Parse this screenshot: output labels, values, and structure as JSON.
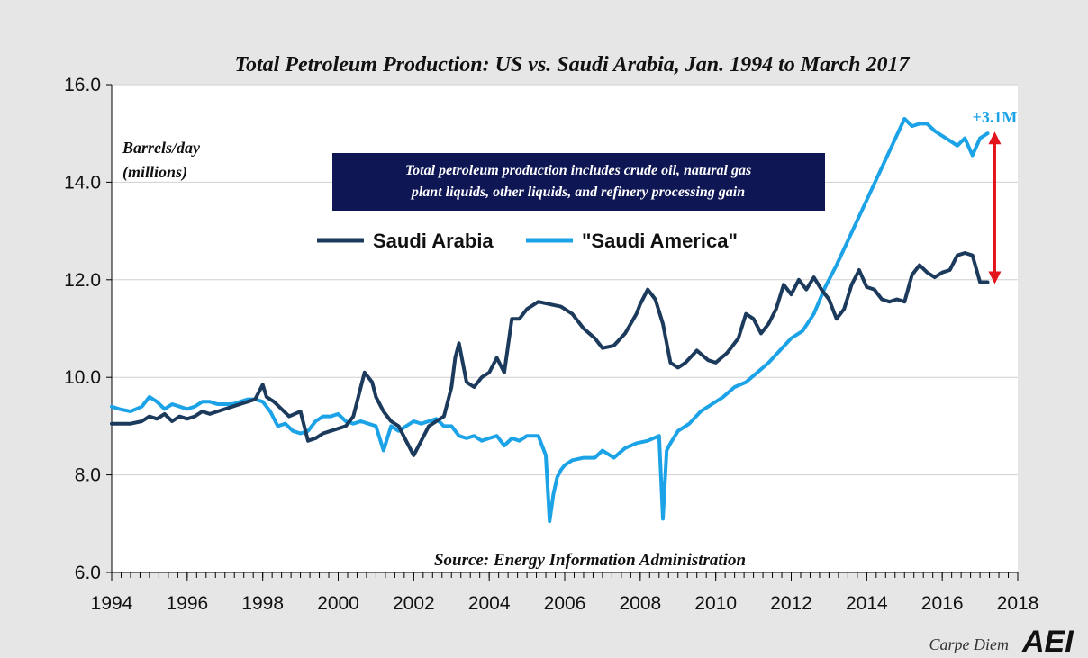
{
  "chart_data": {
    "type": "line",
    "title": "Total Petroleum Production: US vs. Saudi Arabia, Jan. 1994 to March 2017",
    "ylabel_line1": "Barrels/day",
    "ylabel_line2": "(millions)",
    "xlabel": "",
    "xlim": [
      1994,
      2018
    ],
    "ylim": [
      6.0,
      16.0
    ],
    "x_ticks": [
      1994,
      1996,
      1998,
      2000,
      2002,
      2004,
      2006,
      2008,
      2010,
      2012,
      2014,
      2016,
      2018
    ],
    "x_tick_labels": [
      "1994",
      "1996",
      "1998",
      "2000",
      "2002",
      "2004",
      "2006",
      "2008",
      "2010",
      "2012",
      "2014",
      "2016",
      "2018"
    ],
    "y_ticks": [
      6.0,
      8.0,
      10.0,
      12.0,
      14.0,
      16.0
    ],
    "y_tick_labels": [
      "6.0",
      "8.0",
      "10.0",
      "12.0",
      "14.0",
      "16.0"
    ],
    "grid": "horizontal",
    "legend_position": "upper-center",
    "note": "Total petroleum production includes crude oil, natural gas plant liquids, other liquids, and refinery processing gain",
    "source": "Source: Energy Information Administration",
    "annotation": {
      "text": "+3.1M",
      "x": 2017.2,
      "y_from": 11.95,
      "y_to": 15.0,
      "color": "#e3141b"
    },
    "footer": {
      "text": "Carpe Diem",
      "logo": "AEI"
    },
    "series": [
      {
        "name": "Saudi Arabia",
        "color": "#1b3a5c",
        "x": [
          1994.0,
          1994.2,
          1994.5,
          1994.8,
          1995.0,
          1995.2,
          1995.4,
          1995.6,
          1995.8,
          1996.0,
          1996.2,
          1996.4,
          1996.6,
          1996.8,
          1997.0,
          1997.2,
          1997.4,
          1997.6,
          1997.8,
          1998.0,
          1998.1,
          1998.3,
          1998.5,
          1998.7,
          1999.0,
          1999.2,
          1999.4,
          1999.6,
          1999.8,
          2000.0,
          2000.2,
          2000.4,
          2000.6,
          2000.7,
          2000.9,
          2001.0,
          2001.2,
          2001.4,
          2001.6,
          2001.8,
          2002.0,
          2002.2,
          2002.4,
          2002.6,
          2002.8,
          2003.0,
          2003.1,
          2003.2,
          2003.4,
          2003.6,
          2003.8,
          2004.0,
          2004.2,
          2004.4,
          2004.6,
          2004.8,
          2005.0,
          2005.3,
          2005.6,
          2005.9,
          2006.2,
          2006.5,
          2006.8,
          2007.0,
          2007.3,
          2007.6,
          2007.9,
          2008.0,
          2008.2,
          2008.4,
          2008.6,
          2008.8,
          2009.0,
          2009.2,
          2009.5,
          2009.8,
          2010.0,
          2010.3,
          2010.6,
          2010.8,
          2011.0,
          2011.2,
          2011.4,
          2011.6,
          2011.8,
          2012.0,
          2012.2,
          2012.4,
          2012.6,
          2012.8,
          2013.0,
          2013.2,
          2013.4,
          2013.6,
          2013.8,
          2014.0,
          2014.2,
          2014.4,
          2014.6,
          2014.8,
          2015.0,
          2015.2,
          2015.4,
          2015.6,
          2015.8,
          2016.0,
          2016.2,
          2016.4,
          2016.6,
          2016.8,
          2017.0,
          2017.2
        ],
        "values": [
          9.05,
          9.05,
          9.05,
          9.1,
          9.2,
          9.15,
          9.25,
          9.1,
          9.2,
          9.15,
          9.2,
          9.3,
          9.25,
          9.3,
          9.35,
          9.4,
          9.45,
          9.5,
          9.55,
          9.85,
          9.6,
          9.5,
          9.35,
          9.2,
          9.3,
          8.7,
          8.75,
          8.85,
          8.9,
          8.95,
          9.0,
          9.2,
          9.8,
          10.1,
          9.9,
          9.6,
          9.3,
          9.1,
          9.0,
          8.7,
          8.4,
          8.7,
          9.0,
          9.1,
          9.2,
          9.8,
          10.4,
          10.7,
          9.9,
          9.8,
          10.0,
          10.1,
          10.4,
          10.1,
          11.2,
          11.2,
          11.4,
          11.55,
          11.5,
          11.45,
          11.3,
          11.0,
          10.8,
          10.6,
          10.65,
          10.9,
          11.3,
          11.5,
          11.8,
          11.6,
          11.1,
          10.3,
          10.2,
          10.3,
          10.55,
          10.35,
          10.3,
          10.5,
          10.8,
          11.3,
          11.2,
          10.9,
          11.1,
          11.4,
          11.9,
          11.7,
          12.0,
          11.8,
          12.05,
          11.8,
          11.6,
          11.2,
          11.4,
          11.9,
          12.2,
          11.85,
          11.8,
          11.6,
          11.55,
          11.6,
          11.55,
          12.1,
          12.3,
          12.15,
          12.05,
          12.15,
          12.2,
          12.5,
          12.55,
          12.5,
          11.95,
          11.95
        ]
      },
      {
        "name": "\"Saudi America\"",
        "color": "#1ca3e7",
        "x": [
          1994.0,
          1994.2,
          1994.5,
          1994.8,
          1995.0,
          1995.2,
          1995.4,
          1995.6,
          1995.8,
          1996.0,
          1996.2,
          1996.4,
          1996.6,
          1996.8,
          1997.0,
          1997.2,
          1997.4,
          1997.6,
          1997.8,
          1998.0,
          1998.2,
          1998.4,
          1998.6,
          1998.8,
          1999.0,
          1999.2,
          1999.4,
          1999.6,
          1999.8,
          2000.0,
          2000.2,
          2000.4,
          2000.6,
          2000.8,
          2001.0,
          2001.2,
          2001.4,
          2001.6,
          2001.8,
          2002.0,
          2002.2,
          2002.4,
          2002.6,
          2002.8,
          2003.0,
          2003.2,
          2003.4,
          2003.6,
          2003.8,
          2004.0,
          2004.2,
          2004.4,
          2004.6,
          2004.8,
          2005.0,
          2005.3,
          2005.5,
          2005.6,
          2005.7,
          2005.8,
          2005.9,
          2006.0,
          2006.2,
          2006.5,
          2006.8,
          2007.0,
          2007.3,
          2007.6,
          2007.9,
          2008.2,
          2008.5,
          2008.6,
          2008.7,
          2008.8,
          2009.0,
          2009.3,
          2009.6,
          2009.9,
          2010.2,
          2010.5,
          2010.8,
          2011.1,
          2011.4,
          2011.7,
          2012.0,
          2012.3,
          2012.6,
          2012.9,
          2013.2,
          2013.5,
          2013.8,
          2014.1,
          2014.4,
          2014.7,
          2015.0,
          2015.2,
          2015.4,
          2015.6,
          2015.8,
          2016.0,
          2016.2,
          2016.4,
          2016.6,
          2016.8,
          2017.0,
          2017.2
        ],
        "values": [
          9.4,
          9.35,
          9.3,
          9.4,
          9.6,
          9.5,
          9.35,
          9.45,
          9.4,
          9.35,
          9.4,
          9.5,
          9.5,
          9.45,
          9.45,
          9.45,
          9.5,
          9.55,
          9.55,
          9.5,
          9.3,
          9.0,
          9.05,
          8.9,
          8.85,
          8.9,
          9.1,
          9.2,
          9.2,
          9.25,
          9.1,
          9.05,
          9.1,
          9.05,
          9.0,
          8.5,
          9.0,
          8.9,
          9.0,
          9.1,
          9.05,
          9.1,
          9.15,
          9.0,
          9.0,
          8.8,
          8.75,
          8.8,
          8.7,
          8.75,
          8.8,
          8.6,
          8.75,
          8.7,
          8.8,
          8.8,
          8.4,
          7.05,
          7.6,
          7.95,
          8.1,
          8.2,
          8.3,
          8.35,
          8.35,
          8.5,
          8.35,
          8.55,
          8.65,
          8.7,
          8.8,
          7.1,
          8.5,
          8.65,
          8.9,
          9.05,
          9.3,
          9.45,
          9.6,
          9.8,
          9.9,
          10.1,
          10.3,
          10.55,
          10.8,
          10.95,
          11.3,
          11.85,
          12.3,
          12.8,
          13.3,
          13.8,
          14.3,
          14.8,
          15.3,
          15.15,
          15.2,
          15.2,
          15.05,
          14.95,
          14.85,
          14.75,
          14.9,
          14.55,
          14.9,
          15.0
        ]
      }
    ]
  }
}
